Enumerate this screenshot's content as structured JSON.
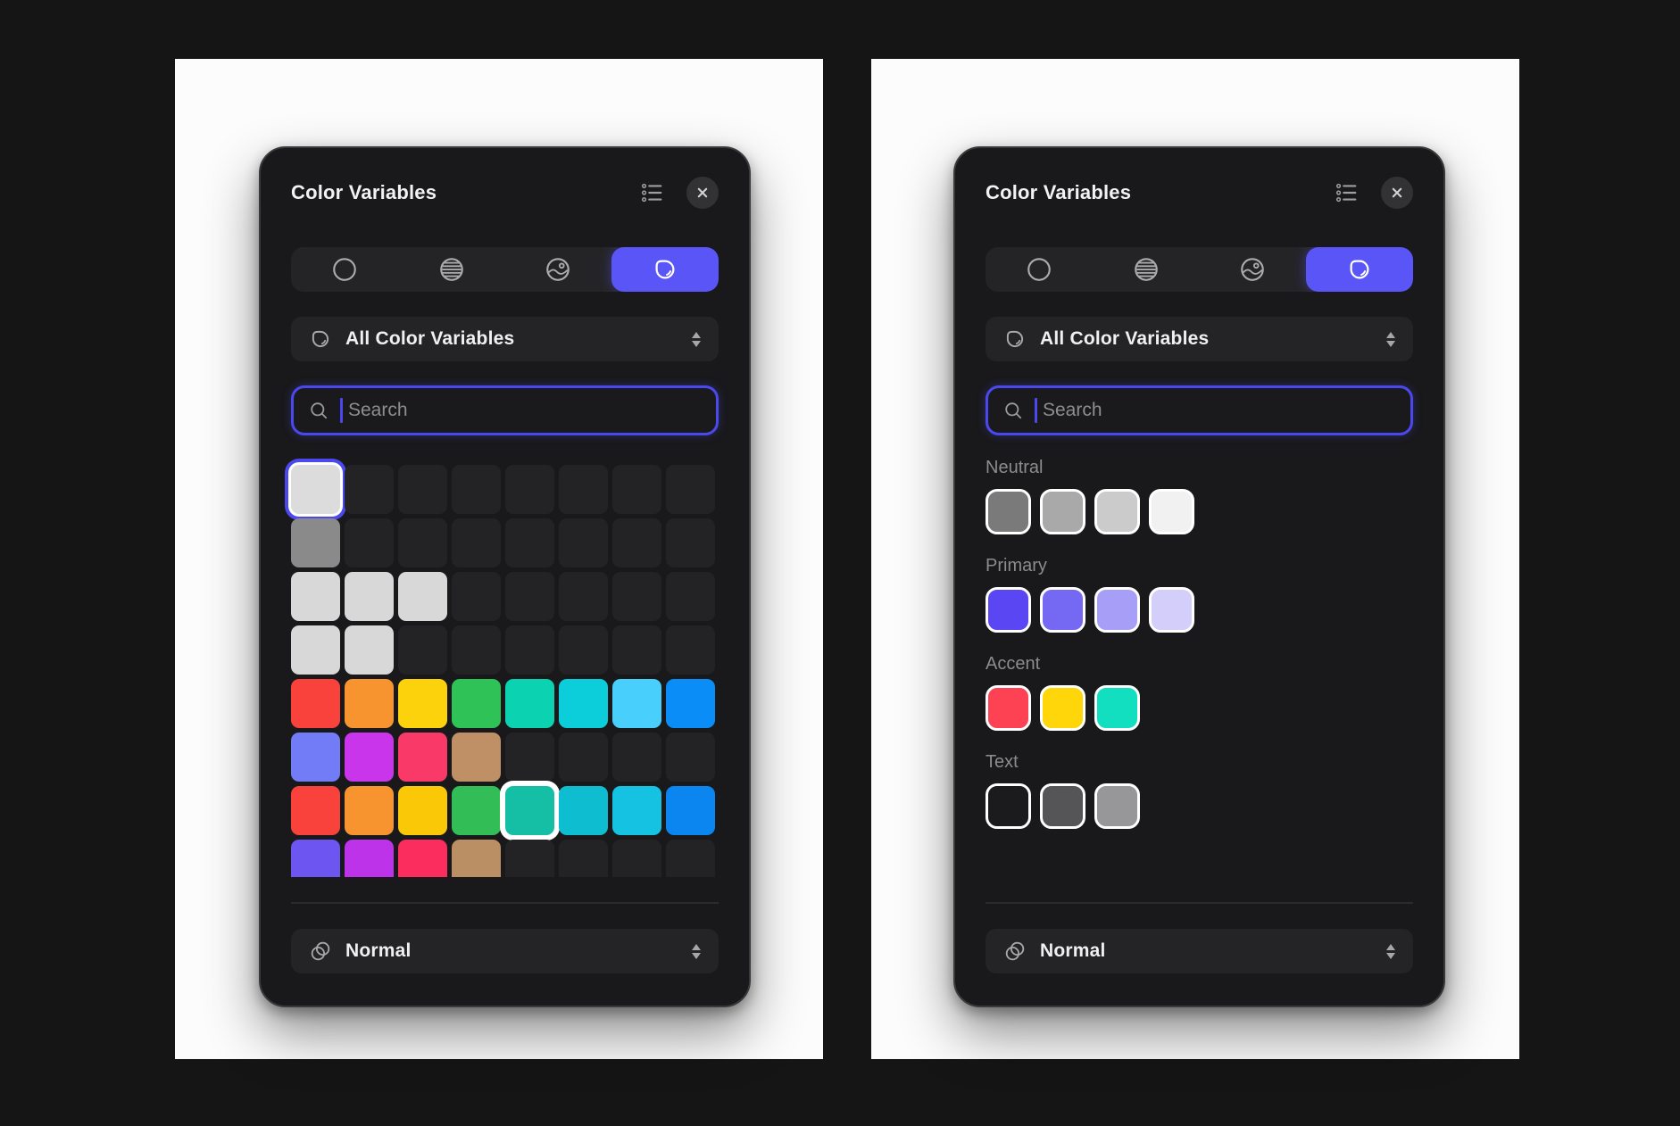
{
  "app": {
    "canvas_bg": "#151515",
    "page_bg": "#FCFCFC",
    "accent_blue": "#5A55F7",
    "search_border_blue": "#4B49EE"
  },
  "left_panel": {
    "title": "Color Variables",
    "header_icons": [
      {
        "name": "list-view-icon"
      },
      {
        "name": "close-icon"
      }
    ],
    "tabs": [
      {
        "name": "solid-color",
        "icon": "solid-color-icon",
        "selected": false
      },
      {
        "name": "gradient",
        "icon": "gradient-icon",
        "selected": false
      },
      {
        "name": "image-fill",
        "icon": "image-fill-icon",
        "selected": false
      },
      {
        "name": "color-variables",
        "icon": "color-variable-icon",
        "selected": true
      }
    ],
    "filter_dropdown": {
      "label": "All Color Variables",
      "icon": "color-variable-icon"
    },
    "search": {
      "placeholder": "Search"
    },
    "grid": {
      "columns": 8,
      "rows": [
        [
          {
            "color": "#DCDCDC",
            "ring": "focus"
          },
          null,
          null,
          null,
          null,
          null,
          null,
          null
        ],
        [
          {
            "color": "#8A8A8A"
          },
          null,
          null,
          null,
          null,
          null,
          null,
          null
        ],
        [
          {
            "color": "#D8D8D8"
          },
          {
            "color": "#D8D8D8"
          },
          {
            "color": "#D8D8D8"
          },
          null,
          null,
          null,
          null,
          null
        ],
        [
          {
            "color": "#D8D8D8"
          },
          {
            "color": "#D8D8D8"
          },
          null,
          null,
          null,
          null,
          null,
          null
        ],
        [
          {
            "color": "#F9423C"
          },
          {
            "color": "#F89430"
          },
          {
            "color": "#FCD20C"
          },
          {
            "color": "#2EC257"
          },
          {
            "color": "#0BD3B1"
          },
          {
            "color": "#0BCEDA"
          },
          {
            "color": "#49CFFB"
          },
          {
            "color": "#0B8DF7"
          }
        ],
        [
          {
            "color": "#727CF6"
          },
          {
            "color": "#C935EA"
          },
          {
            "color": "#F93A68"
          },
          {
            "color": "#BF8F66"
          },
          null,
          null,
          null,
          null
        ],
        [
          {
            "color": "#F9423C"
          },
          {
            "color": "#F89430"
          },
          {
            "color": "#FBC808"
          },
          {
            "color": "#33BD56"
          },
          {
            "color": "#14BFA5",
            "ring": "white"
          },
          {
            "color": "#0FBDD1"
          },
          {
            "color": "#16C2E2"
          },
          {
            "color": "#0B85F0"
          }
        ],
        [
          {
            "color": "#6C55F1"
          },
          {
            "color": "#BC33E9"
          },
          {
            "color": "#FB2D5E"
          },
          {
            "color": "#B98F63"
          },
          null,
          null,
          null,
          null
        ]
      ]
    },
    "blend_dropdown": {
      "label": "Normal",
      "icon": "blend-mode-icon"
    }
  },
  "right_panel": {
    "title": "Color Variables",
    "header_icons": [
      {
        "name": "list-view-icon"
      },
      {
        "name": "close-icon"
      }
    ],
    "tabs": [
      {
        "name": "solid-color",
        "icon": "solid-color-icon",
        "selected": false
      },
      {
        "name": "gradient",
        "icon": "gradient-icon",
        "selected": false
      },
      {
        "name": "image-fill",
        "icon": "image-fill-icon",
        "selected": false
      },
      {
        "name": "color-variables",
        "icon": "color-variable-icon",
        "selected": true
      }
    ],
    "filter_dropdown": {
      "label": "All Color Variables",
      "icon": "color-variable-icon"
    },
    "search": {
      "placeholder": "Search"
    },
    "sections": [
      {
        "label": "Neutral",
        "swatches": [
          "#7A7A7A",
          "#A9A9A9",
          "#CBCBCB",
          "#F1F1F1"
        ]
      },
      {
        "label": "Primary",
        "swatches": [
          "#5A46F2",
          "#7569F4",
          "#A79FF7",
          "#D4CFFA"
        ]
      },
      {
        "label": "Accent",
        "swatches": [
          "#FC4253",
          "#FFD60A",
          "#12DFC0"
        ]
      },
      {
        "label": "Text",
        "swatches": [
          "#1B1B1D",
          "#555557",
          "#979799"
        ]
      }
    ],
    "blend_dropdown": {
      "label": "Normal",
      "icon": "blend-mode-icon"
    }
  }
}
